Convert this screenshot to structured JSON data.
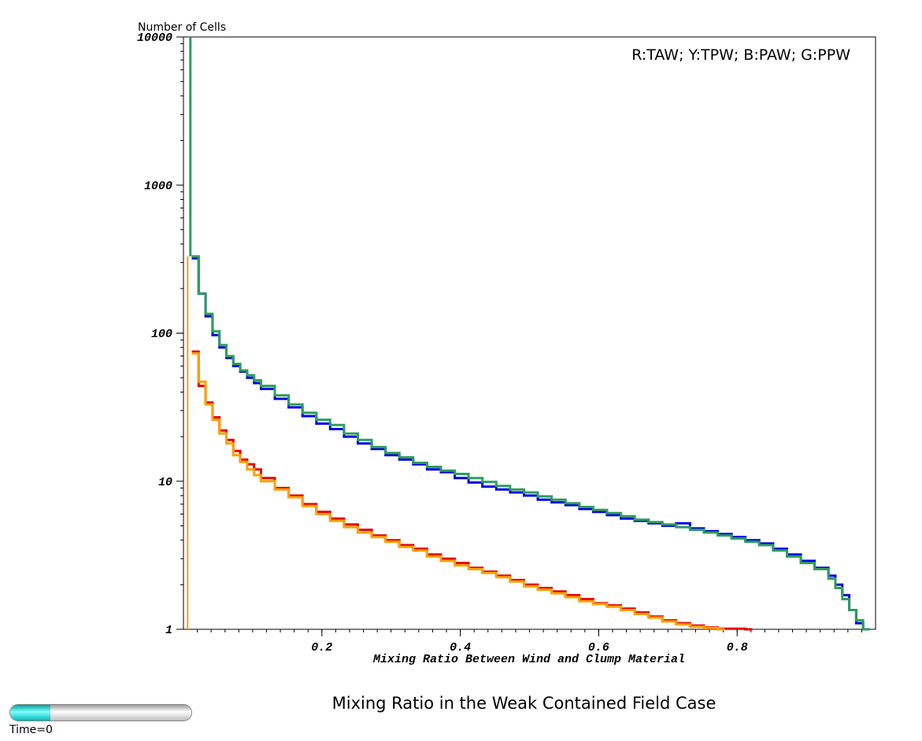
{
  "chart_data": {
    "type": "line",
    "step": true,
    "title": "Mixing Ratio in the Weak Contained Field Case",
    "xlabel": "Mixing Ratio Between Wind and Clump Material",
    "ylabel": "Number of Cells",
    "legend_text": "R:TAW; Y:TPW; B:PAW; G:PPW",
    "legend_placement": "top-right",
    "x_scale": "linear",
    "y_scale": "log",
    "xlim": [
      0,
      1
    ],
    "ylim": [
      1,
      10000
    ],
    "x_ticks": [
      0.2,
      0.4,
      0.6,
      0.8
    ],
    "x_tick_labels": [
      "0.2",
      "0.4",
      "0.6",
      "0.8"
    ],
    "y_ticks": [
      1,
      10,
      100,
      1000,
      10000
    ],
    "y_tick_labels": [
      "1",
      "10",
      "100",
      "1000",
      "10000"
    ],
    "grid": false,
    "series": [
      {
        "name": "TAW",
        "color": "#e60000",
        "width": 3,
        "x": [
          0,
          0.01,
          0.02,
          0.03,
          0.04,
          0.05,
          0.06,
          0.07,
          0.08,
          0.09,
          0.1,
          0.12,
          0.14,
          0.16,
          0.18,
          0.2,
          0.22,
          0.24,
          0.26,
          0.28,
          0.3,
          0.32,
          0.34,
          0.36,
          0.38,
          0.4,
          0.42,
          0.44,
          0.46,
          0.48,
          0.5,
          0.52,
          0.54,
          0.56,
          0.58,
          0.6,
          0.62,
          0.64,
          0.66,
          0.68,
          0.7,
          0.72,
          0.74,
          0.76,
          0.8
        ],
        "y": [
          75,
          44,
          34,
          27,
          22,
          19,
          16,
          14,
          13,
          12,
          10.5,
          9,
          8,
          7,
          6.2,
          5.6,
          5.1,
          4.7,
          4.3,
          4.0,
          3.7,
          3.5,
          3.2,
          3.0,
          2.8,
          2.6,
          2.45,
          2.3,
          2.15,
          2.0,
          1.9,
          1.8,
          1.7,
          1.6,
          1.5,
          1.45,
          1.38,
          1.3,
          1.22,
          1.15,
          1.1,
          1.06,
          1.03,
          1.01,
          1.0
        ]
      },
      {
        "name": "TPW",
        "color": "#ff9f00",
        "width": 3,
        "x": [
          0,
          0.01,
          0.02,
          0.03,
          0.04,
          0.05,
          0.06,
          0.07,
          0.08,
          0.09,
          0.1,
          0.12,
          0.14,
          0.16,
          0.18,
          0.2,
          0.22,
          0.24,
          0.26,
          0.28,
          0.3,
          0.32,
          0.34,
          0.36,
          0.38,
          0.4,
          0.42,
          0.44,
          0.46,
          0.48,
          0.5,
          0.52,
          0.54,
          0.56,
          0.58,
          0.6,
          0.62,
          0.64,
          0.66,
          0.68,
          0.7,
          0.72,
          0.74,
          0.76
        ],
        "y": [
          73,
          47,
          33,
          26,
          21,
          18,
          15,
          13.5,
          12,
          11,
          10,
          8.8,
          7.8,
          6.8,
          6.0,
          5.4,
          4.9,
          4.5,
          4.2,
          3.9,
          3.6,
          3.4,
          3.1,
          2.9,
          2.7,
          2.55,
          2.4,
          2.25,
          2.1,
          1.95,
          1.85,
          1.75,
          1.65,
          1.55,
          1.48,
          1.42,
          1.35,
          1.27,
          1.2,
          1.13,
          1.08,
          1.04,
          1.02,
          1.0
        ]
      },
      {
        "name": "PAW",
        "color": "#0000e0",
        "width": 3,
        "x": [
          0,
          0.01,
          0.02,
          0.03,
          0.04,
          0.05,
          0.06,
          0.07,
          0.08,
          0.09,
          0.1,
          0.12,
          0.14,
          0.16,
          0.18,
          0.2,
          0.22,
          0.24,
          0.26,
          0.28,
          0.3,
          0.32,
          0.34,
          0.36,
          0.38,
          0.4,
          0.42,
          0.44,
          0.46,
          0.48,
          0.5,
          0.52,
          0.54,
          0.56,
          0.58,
          0.6,
          0.62,
          0.64,
          0.66,
          0.68,
          0.7,
          0.72,
          0.74,
          0.76,
          0.78,
          0.8,
          0.82,
          0.84,
          0.86,
          0.88,
          0.9,
          0.92,
          0.93,
          0.94,
          0.95,
          0.96
        ],
        "y": [
          320,
          185,
          130,
          97,
          80,
          68,
          60,
          55,
          50,
          46,
          42,
          36,
          31.5,
          27.5,
          24.5,
          22.5,
          20,
          18,
          16.5,
          15,
          14,
          13,
          12,
          11.5,
          10.5,
          9.8,
          9.2,
          8.8,
          8.4,
          8.0,
          7.5,
          7.2,
          6.9,
          6.5,
          6.2,
          5.9,
          5.6,
          5.4,
          5.2,
          5.0,
          5.2,
          4.8,
          4.6,
          4.4,
          4.2,
          4.0,
          3.8,
          3.5,
          3.2,
          2.9,
          2.6,
          2.3,
          2.0,
          1.7,
          1.35,
          1.1
        ]
      },
      {
        "name": "PPW",
        "color": "#2e9d5e",
        "width": 3,
        "x": [
          0,
          0.01,
          0.02,
          0.03,
          0.04,
          0.05,
          0.06,
          0.07,
          0.08,
          0.09,
          0.1,
          0.12,
          0.14,
          0.16,
          0.18,
          0.2,
          0.22,
          0.24,
          0.26,
          0.28,
          0.3,
          0.32,
          0.34,
          0.36,
          0.38,
          0.4,
          0.42,
          0.44,
          0.46,
          0.48,
          0.5,
          0.52,
          0.54,
          0.56,
          0.58,
          0.6,
          0.62,
          0.64,
          0.66,
          0.68,
          0.7,
          0.72,
          0.74,
          0.76,
          0.78,
          0.8,
          0.82,
          0.84,
          0.86,
          0.88,
          0.9,
          0.92,
          0.93,
          0.94,
          0.95,
          0.96,
          0.97
        ],
        "y": [
          330,
          185,
          135,
          103,
          83,
          70,
          62,
          56,
          52,
          48,
          44,
          38,
          33,
          29,
          26,
          24,
          21,
          19,
          17,
          15.5,
          14.5,
          13.3,
          12.5,
          11.8,
          11.2,
          10.5,
          9.9,
          9.3,
          8.8,
          8.4,
          7.9,
          7.5,
          7.1,
          6.7,
          6.4,
          6.1,
          5.8,
          5.5,
          5.3,
          5.1,
          4.9,
          4.7,
          4.5,
          4.3,
          4.1,
          3.9,
          3.7,
          3.4,
          3.1,
          2.8,
          2.55,
          2.2,
          1.9,
          1.6,
          1.35,
          1.15,
          1.0
        ]
      }
    ]
  },
  "timebar": {
    "label": "Time=0",
    "progress": 0.22
  }
}
